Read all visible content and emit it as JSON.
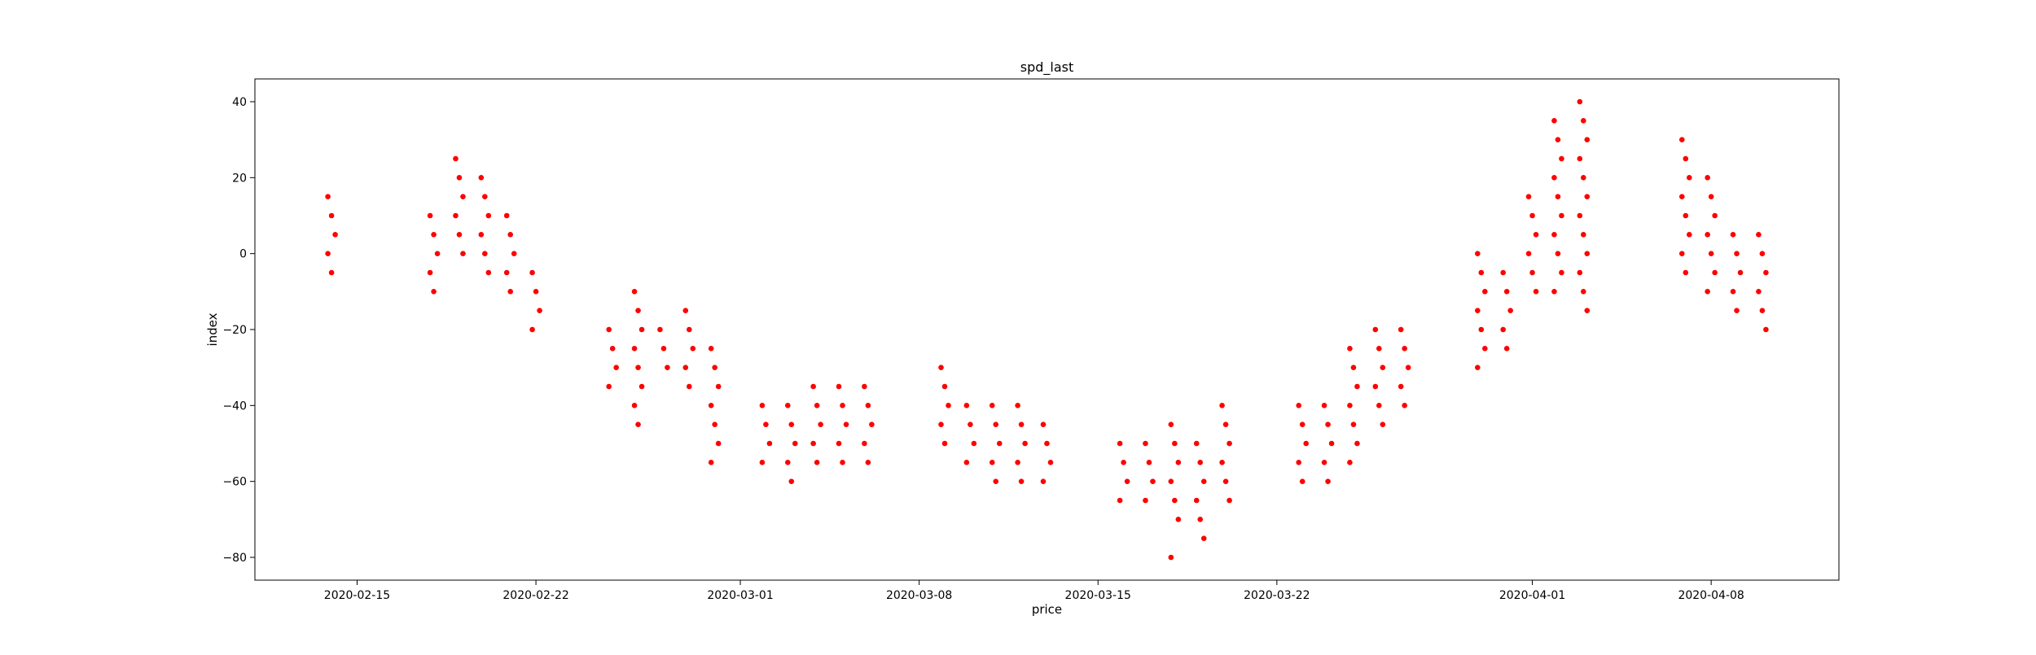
{
  "chart_data": {
    "type": "scatter",
    "title": "spd_last",
    "xlabel": "price",
    "ylabel": "index",
    "x_axis_type": "date",
    "xlim": [
      "2020-02-11",
      "2020-04-13"
    ],
    "ylim": [
      -86,
      46
    ],
    "x_ticks": [
      "2020-02-15",
      "2020-02-22",
      "2020-03-01",
      "2020-03-08",
      "2020-03-15",
      "2020-03-22",
      "2020-04-01",
      "2020-04-08"
    ],
    "y_ticks": [
      40,
      20,
      0,
      -20,
      -40,
      -60,
      -80
    ],
    "y_tick_labels": [
      "40",
      "20",
      "0",
      "−20",
      "−40",
      "−60",
      "−80"
    ],
    "grid": false,
    "legend": false,
    "marker_color": "#ff0000",
    "series": [
      {
        "groups": [
          {
            "date": "2020-02-14",
            "values": [
              15,
              10,
              5,
              0,
              -5
            ]
          },
          {
            "date": "2020-02-18",
            "values": [
              10,
              5,
              0,
              -5,
              -10
            ]
          },
          {
            "date": "2020-02-19",
            "values": [
              25,
              20,
              15,
              10,
              5,
              0
            ]
          },
          {
            "date": "2020-02-20",
            "values": [
              20,
              15,
              10,
              5,
              0,
              -5
            ]
          },
          {
            "date": "2020-02-21",
            "values": [
              10,
              5,
              0,
              -5,
              -10
            ]
          },
          {
            "date": "2020-02-22",
            "values": [
              -5,
              -10,
              -15,
              -20
            ]
          },
          {
            "date": "2020-02-25",
            "values": [
              -20,
              -25,
              -30,
              -35
            ]
          },
          {
            "date": "2020-02-26",
            "values": [
              -10,
              -15,
              -20,
              -25,
              -30,
              -35,
              -40,
              -45
            ]
          },
          {
            "date": "2020-02-27",
            "values": [
              -20,
              -25,
              -30
            ]
          },
          {
            "date": "2020-02-28",
            "values": [
              -15,
              -20,
              -25,
              -30,
              -35
            ]
          },
          {
            "date": "2020-02-29",
            "values": [
              -25,
              -30,
              -35,
              -40,
              -45,
              -50,
              -55
            ]
          },
          {
            "date": "2020-03-02",
            "values": [
              -40,
              -45,
              -50,
              -55
            ]
          },
          {
            "date": "2020-03-03",
            "values": [
              -40,
              -45,
              -50,
              -55,
              -60
            ]
          },
          {
            "date": "2020-03-04",
            "values": [
              -35,
              -40,
              -45,
              -50,
              -55
            ]
          },
          {
            "date": "2020-03-05",
            "values": [
              -35,
              -40,
              -45,
              -50,
              -55
            ]
          },
          {
            "date": "2020-03-06",
            "values": [
              -35,
              -40,
              -45,
              -50,
              -55
            ]
          },
          {
            "date": "2020-03-09",
            "values": [
              -30,
              -35,
              -40,
              -45,
              -50
            ]
          },
          {
            "date": "2020-03-10",
            "values": [
              -40,
              -45,
              -50,
              -55
            ]
          },
          {
            "date": "2020-03-11",
            "values": [
              -40,
              -45,
              -50,
              -55,
              -60
            ]
          },
          {
            "date": "2020-03-12",
            "values": [
              -40,
              -45,
              -50,
              -55,
              -60
            ]
          },
          {
            "date": "2020-03-13",
            "values": [
              -45,
              -50,
              -55,
              -60
            ]
          },
          {
            "date": "2020-03-16",
            "values": [
              -50,
              -55,
              -60,
              -65
            ]
          },
          {
            "date": "2020-03-17",
            "values": [
              -50,
              -55,
              -60,
              -65
            ]
          },
          {
            "date": "2020-03-18",
            "values": [
              -45,
              -50,
              -55,
              -60,
              -65,
              -70,
              -80
            ]
          },
          {
            "date": "2020-03-19",
            "values": [
              -50,
              -55,
              -60,
              -65,
              -70,
              -75
            ]
          },
          {
            "date": "2020-03-20",
            "values": [
              -40,
              -45,
              -50,
              -55,
              -60,
              -65
            ]
          },
          {
            "date": "2020-03-23",
            "values": [
              -40,
              -45,
              -50,
              -55,
              -60
            ]
          },
          {
            "date": "2020-03-24",
            "values": [
              -40,
              -45,
              -50,
              -55,
              -60
            ]
          },
          {
            "date": "2020-03-25",
            "values": [
              -25,
              -30,
              -35,
              -40,
              -45,
              -50,
              -55
            ]
          },
          {
            "date": "2020-03-26",
            "values": [
              -20,
              -25,
              -30,
              -35,
              -40,
              -45
            ]
          },
          {
            "date": "2020-03-27",
            "values": [
              -20,
              -25,
              -30,
              -35,
              -40
            ]
          },
          {
            "date": "2020-03-30",
            "values": [
              0,
              -5,
              -10,
              -15,
              -20,
              -25,
              -30
            ]
          },
          {
            "date": "2020-03-31",
            "values": [
              -5,
              -10,
              -15,
              -20,
              -25
            ]
          },
          {
            "date": "2020-04-01",
            "values": [
              15,
              10,
              5,
              0,
              -5,
              -10
            ]
          },
          {
            "date": "2020-04-02",
            "values": [
              35,
              30,
              25,
              20,
              15,
              10,
              5,
              0,
              -5,
              -10
            ]
          },
          {
            "date": "2020-04-03",
            "values": [
              40,
              35,
              30,
              25,
              20,
              15,
              10,
              5,
              0,
              -5,
              -10,
              -15
            ]
          },
          {
            "date": "2020-04-07",
            "values": [
              30,
              25,
              20,
              15,
              10,
              5,
              0,
              -5
            ]
          },
          {
            "date": "2020-04-08",
            "values": [
              20,
              15,
              10,
              5,
              0,
              -5,
              -10
            ]
          },
          {
            "date": "2020-04-09",
            "values": [
              5,
              0,
              -5,
              -10,
              -15
            ]
          },
          {
            "date": "2020-04-10",
            "values": [
              5,
              0,
              -5,
              -10,
              -15,
              -20
            ]
          }
        ]
      }
    ]
  }
}
